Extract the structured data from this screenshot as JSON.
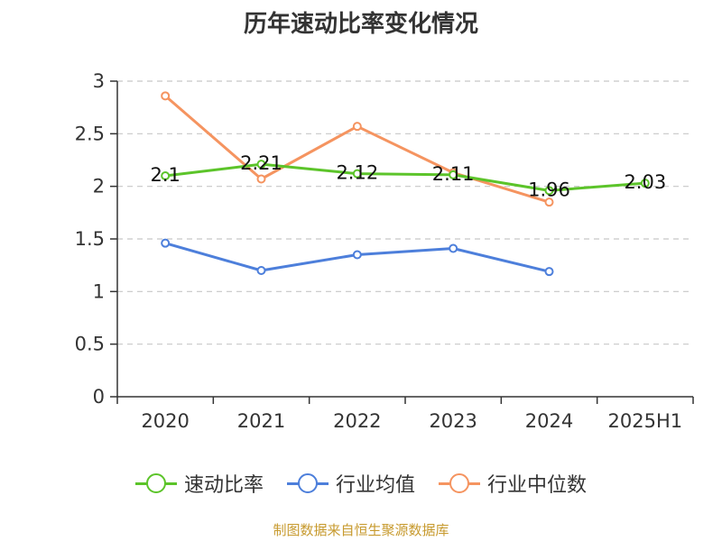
{
  "chart_data": {
    "type": "line",
    "title": "历年速动比率变化情况",
    "categories": [
      "2020",
      "2021",
      "2022",
      "2023",
      "2024",
      "2025H1"
    ],
    "y_ticks": [
      "0",
      "0.5",
      "1",
      "1.5",
      "2",
      "2.5",
      "3"
    ],
    "ylim": [
      0,
      3
    ],
    "grid": true,
    "legend_position": "bottom",
    "series": [
      {
        "name": "速动比率",
        "color": "#5cc42a",
        "values": [
          2.1,
          2.21,
          2.12,
          2.11,
          1.96,
          2.03
        ],
        "labels": [
          "2.1",
          "2.21",
          "2.12",
          "2.11",
          "1.96",
          "2.03"
        ]
      },
      {
        "name": "行业均值",
        "color": "#4d7fdb",
        "values": [
          1.46,
          1.2,
          1.35,
          1.41,
          1.19,
          null
        ]
      },
      {
        "name": "行业中位数",
        "color": "#f59460",
        "values": [
          2.86,
          2.07,
          2.57,
          2.13,
          1.85,
          null
        ]
      }
    ]
  },
  "source": "制图数据来自恒生聚源数据库"
}
